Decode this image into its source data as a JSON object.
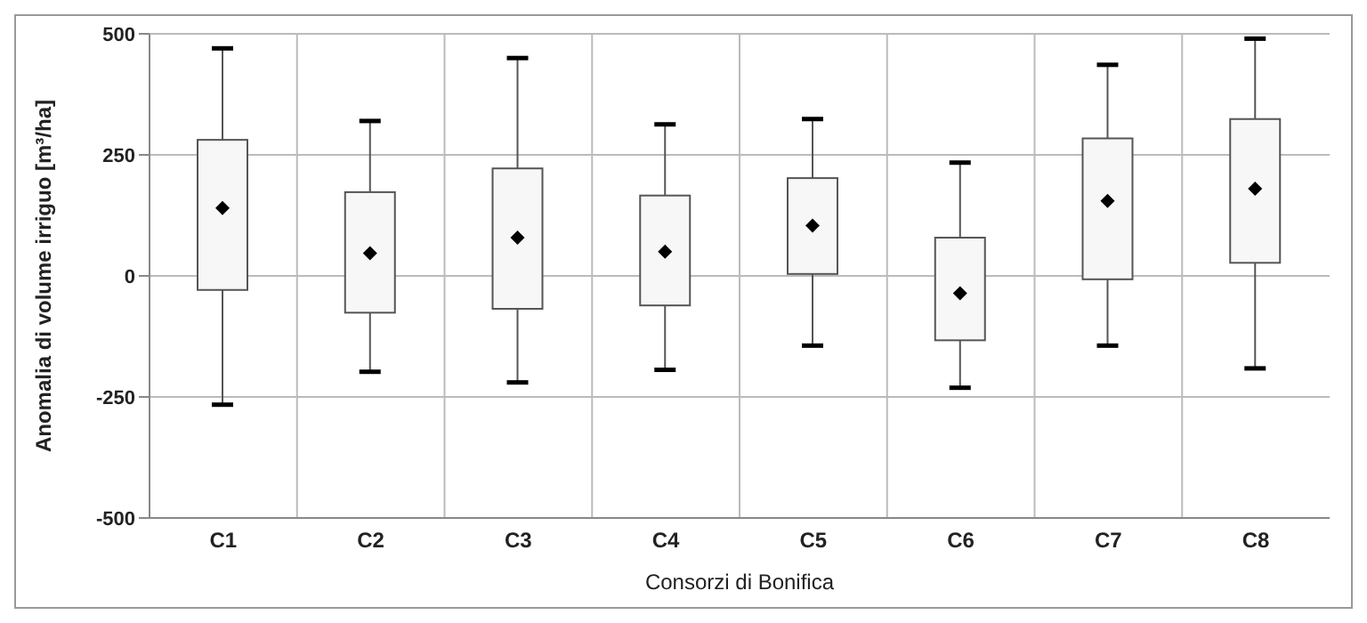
{
  "chart_data": {
    "type": "box",
    "xlabel": "Consorzi di Bonifica",
    "ylabel": "Anomalia di volume irriguo [m³/ha]",
    "categories": [
      "C1",
      "C2",
      "C3",
      "C4",
      "C5",
      "C6",
      "C7",
      "C8"
    ],
    "boxes": [
      {
        "low": -266,
        "q1": -29,
        "median": 140,
        "q3": 281,
        "high": 470
      },
      {
        "low": -198,
        "q1": -76,
        "median": 47,
        "q3": 173,
        "high": 320
      },
      {
        "low": -220,
        "q1": -68,
        "median": 79,
        "q3": 222,
        "high": 450
      },
      {
        "low": -194,
        "q1": -61,
        "median": 50,
        "q3": 166,
        "high": 313
      },
      {
        "low": -144,
        "q1": 4,
        "median": 104,
        "q3": 202,
        "high": 324
      },
      {
        "low": -231,
        "q1": -133,
        "median": -36,
        "q3": 79,
        "high": 234
      },
      {
        "low": -144,
        "q1": -7,
        "median": 155,
        "q3": 284,
        "high": 436
      },
      {
        "low": -191,
        "q1": 27,
        "median": 180,
        "q3": 324,
        "high": 490
      }
    ],
    "color": "#f7f7f7",
    "ylim": [
      -500,
      500
    ],
    "yticks": [
      -500,
      -250,
      0,
      250,
      500
    ],
    "grid": true,
    "marker": "diamond"
  }
}
